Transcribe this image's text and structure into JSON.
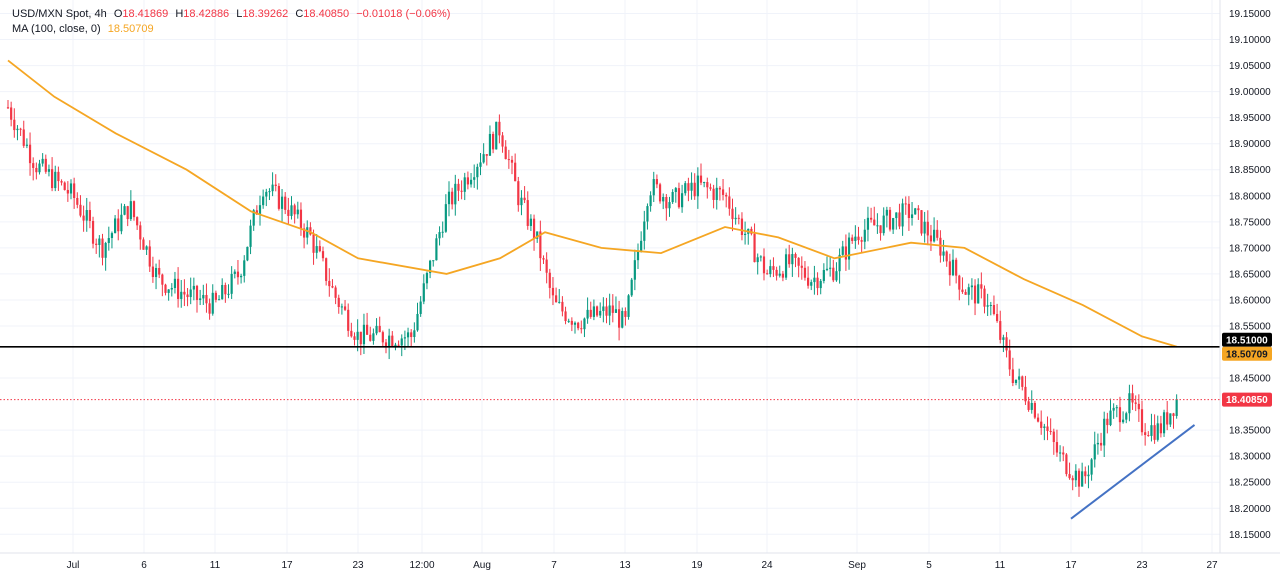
{
  "legend": {
    "symbol": "USD/MXN Spot, 4h",
    "open_label": "O",
    "open": "18.41869",
    "high_label": "H",
    "high": "18.42886",
    "low_label": "L",
    "low": "18.39262",
    "close_label": "C",
    "close": "18.40850",
    "change": "−0.01018 (−0.06%)",
    "ma_label": "MA (100, close, 0)",
    "ma_value": "18.50709"
  },
  "colors": {
    "up": "#089981",
    "down": "#f23645",
    "ma": "#f5a623",
    "support": "#000000",
    "trendline": "#4472c4",
    "last_price": "#f23645",
    "grid": "#f0f3fa"
  },
  "chart_data": {
    "type": "candlestick",
    "title": "USD/MXN Spot, 4h",
    "ylim": [
      18.13,
      19.17
    ],
    "y_ticks": [
      "19.15000",
      "19.10000",
      "19.05000",
      "19.00000",
      "18.95000",
      "18.90000",
      "18.85000",
      "18.80000",
      "18.75000",
      "18.70000",
      "18.65000",
      "18.60000",
      "18.55000",
      "18.45000",
      "18.35000",
      "18.30000",
      "18.25000",
      "18.20000",
      "18.15000"
    ],
    "x_ticks": [
      "Jul",
      "6",
      "11",
      "17",
      "23",
      "12:00",
      "Aug",
      "7",
      "13",
      "19",
      "24",
      "Sep",
      "5",
      "11",
      "17",
      "23",
      "27"
    ],
    "horizontal_line": {
      "value": 18.51,
      "label": "18.51000"
    },
    "ma_tag": {
      "value": 18.50709,
      "label": "18.50709"
    },
    "last_price": {
      "value": 18.4085,
      "label": "18.40850"
    },
    "trendline": {
      "from": [
        "Sep 17",
        18.18
      ],
      "to": [
        "Sep 26",
        18.36
      ]
    },
    "ma_series": [
      [
        "Jun 24",
        19.06
      ],
      [
        "Jun 29",
        18.99
      ],
      [
        "Jul 4",
        18.92
      ],
      [
        "Jul 9",
        18.85
      ],
      [
        "Jul 14",
        18.77
      ],
      [
        "Jul 19",
        18.73
      ],
      [
        "Jul 23",
        18.68
      ],
      [
        "Jul 28",
        18.65
      ],
      [
        "Aug 1",
        18.68
      ],
      [
        "Aug 6",
        18.73
      ],
      [
        "Aug 11",
        18.7
      ],
      [
        "Aug 16",
        18.69
      ],
      [
        "Aug 21",
        18.74
      ],
      [
        "Aug 25",
        18.72
      ],
      [
        "Aug 30",
        18.68
      ],
      [
        "Sep 4",
        18.71
      ],
      [
        "Sep 8",
        18.7
      ],
      [
        "Sep 13",
        18.64
      ],
      [
        "Sep 18",
        18.59
      ],
      [
        "Sep 23",
        18.53
      ],
      [
        "Sep 25",
        18.51
      ]
    ],
    "close_series": [
      [
        "Jun 24",
        18.97
      ],
      [
        "Jun 27",
        18.86
      ],
      [
        "Jul 1",
        18.8
      ],
      [
        "Jul 3",
        18.7
      ],
      [
        "Jul 5",
        18.78
      ],
      [
        "Jul 7",
        18.64
      ],
      [
        "Jul 9",
        18.61
      ],
      [
        "Jul 11",
        18.59
      ],
      [
        "Jul 13",
        18.65
      ],
      [
        "Jul 15",
        18.82
      ],
      [
        "Jul 17",
        18.78
      ],
      [
        "Jul 19",
        18.72
      ],
      [
        "Jul 21",
        18.61
      ],
      [
        "Jul 23",
        18.53
      ],
      [
        "Jul 26",
        18.53
      ],
      [
        "Jul 28",
        18.78
      ],
      [
        "Jul 30",
        18.88
      ],
      [
        "Aug 1",
        18.93
      ],
      [
        "Aug 3",
        18.8
      ],
      [
        "Aug 5",
        18.72
      ],
      [
        "Aug 7",
        18.59
      ],
      [
        "Aug 9",
        18.56
      ],
      [
        "Aug 12",
        18.58
      ],
      [
        "Aug 13",
        18.55
      ],
      [
        "Aug 15",
        18.82
      ],
      [
        "Aug 17",
        18.79
      ],
      [
        "Aug 19",
        18.82
      ],
      [
        "Aug 21",
        18.8
      ],
      [
        "Aug 24",
        18.65
      ],
      [
        "Aug 26",
        18.67
      ],
      [
        "Aug 28",
        18.64
      ],
      [
        "Aug 30",
        18.66
      ],
      [
        "Sep 1",
        18.73
      ],
      [
        "Sep 4",
        18.77
      ],
      [
        "Sep 6",
        18.7
      ],
      [
        "Sep 8",
        18.62
      ],
      [
        "Sep 10",
        18.6
      ],
      [
        "Sep 12",
        18.46
      ],
      [
        "Sep 14",
        18.39
      ],
      [
        "Sep 16",
        18.3
      ],
      [
        "Sep 18",
        18.25
      ],
      [
        "Sep 20",
        18.37
      ],
      [
        "Sep 22",
        18.4
      ],
      [
        "Sep 23",
        18.36
      ],
      [
        "Sep 24",
        18.35
      ],
      [
        "Sep 25",
        18.41
      ]
    ]
  }
}
